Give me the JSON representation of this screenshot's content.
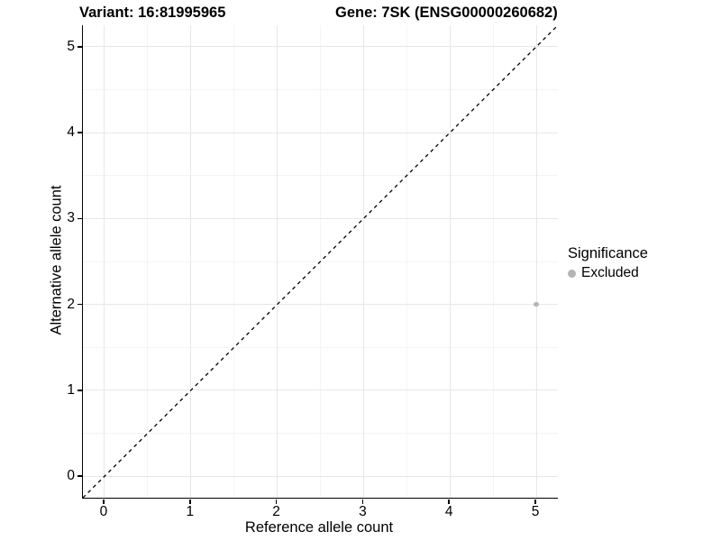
{
  "chart_data": {
    "type": "scatter",
    "title_left": "Variant: 16:81995965",
    "title_right": "Gene: 7SK (ENSG00000260682)",
    "xlabel": "Reference allele count",
    "ylabel": "Alternative allele count",
    "xlim": [
      -0.25,
      5.25
    ],
    "ylim": [
      -0.25,
      5.25
    ],
    "xticks": [
      "0",
      "1",
      "2",
      "3",
      "4",
      "5"
    ],
    "yticks": [
      "0",
      "1",
      "2",
      "3",
      "4",
      "5"
    ],
    "minor_gridlines_x": [
      0.5,
      1.5,
      2.5,
      3.5,
      4.5
    ],
    "minor_gridlines_y": [
      0.5,
      1.5,
      2.5,
      3.5,
      4.5
    ],
    "grid": "major and minor gridlines on white panel",
    "points": [
      {
        "x": 5,
        "y": 2,
        "significance": "Excluded"
      }
    ],
    "identity_line": {
      "style": "dashed",
      "from": [
        -0.25,
        -0.25
      ],
      "to": [
        5.25,
        5.25
      ]
    },
    "legend": {
      "title": "Significance",
      "position": "right",
      "entries": [
        {
          "label": "Excluded",
          "color": "#b5b5b5"
        }
      ]
    }
  },
  "colors": {
    "background": "#ffffff",
    "axis_line": "#000000",
    "major_grid": "#e7e7e7",
    "minor_grid": "#f4f4f4",
    "point_excluded": "#b5b5b5",
    "identity_line": "#000000",
    "text": "#000000"
  }
}
